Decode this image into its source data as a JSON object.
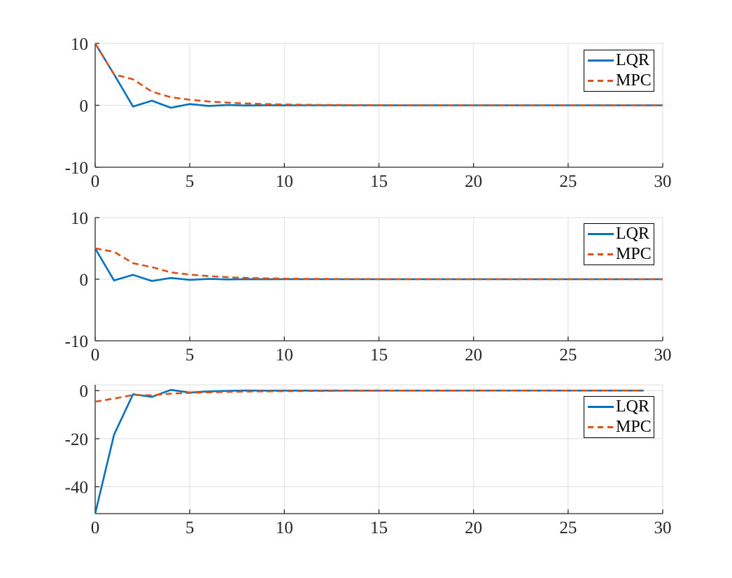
{
  "figure": {
    "background": "#ffffff"
  },
  "colors": {
    "lqr_blue": "#0072BD",
    "mpc_orange": "#D95319",
    "grid_gray": "#DEDEDE",
    "axis_dark": "#262626",
    "legend_border": "#000000"
  },
  "legend": {
    "items": [
      {
        "label": "LQR",
        "style": "solid",
        "color": "#0072BD"
      },
      {
        "label": "MPC",
        "style": "dashed",
        "color": "#D95319"
      }
    ]
  },
  "chart_data": [
    {
      "type": "line",
      "title": "",
      "xlabel": "",
      "ylabel": "",
      "xlim": [
        0,
        30
      ],
      "ylim": [
        -10,
        10
      ],
      "xticks": [
        0,
        5,
        10,
        15,
        20,
        25,
        30
      ],
      "yticks": [
        10,
        0,
        -10
      ],
      "grid": true,
      "legend_position": "northeast",
      "x_start": 0,
      "x_step": 1,
      "series": [
        {
          "name": "LQR",
          "color": "#0072BD",
          "style": "solid",
          "y": [
            10,
            5,
            -0.2,
            0.75,
            -0.4,
            0.2,
            -0.1,
            0.05,
            -0.03,
            0.01,
            -0.01,
            0,
            0,
            0,
            0,
            0,
            0,
            0,
            0,
            0,
            0,
            0,
            0,
            0,
            0,
            0,
            0,
            0,
            0,
            0,
            0
          ]
        },
        {
          "name": "MPC",
          "color": "#D95319",
          "style": "dashed",
          "y": [
            10,
            5,
            4.2,
            2.2,
            1.3,
            0.9,
            0.62,
            0.43,
            0.29,
            0.2,
            0.13,
            0.09,
            0.06,
            0.04,
            0.03,
            0.02,
            0.01,
            0.01,
            0,
            0,
            0,
            0,
            0,
            0,
            0,
            0,
            0,
            0,
            0,
            0,
            0
          ]
        }
      ]
    },
    {
      "type": "line",
      "title": "",
      "xlabel": "",
      "ylabel": "",
      "xlim": [
        0,
        30
      ],
      "ylim": [
        -10,
        10
      ],
      "xticks": [
        0,
        5,
        10,
        15,
        20,
        25,
        30
      ],
      "yticks": [
        10,
        0,
        -10
      ],
      "grid": true,
      "legend_position": "northeast",
      "x_start": 0,
      "x_step": 1,
      "series": [
        {
          "name": "LQR",
          "color": "#0072BD",
          "style": "solid",
          "y": [
            5,
            -0.2,
            0.7,
            -0.3,
            0.2,
            -0.1,
            0.05,
            -0.03,
            0.01,
            -0.01,
            0,
            0,
            0,
            0,
            0,
            0,
            0,
            0,
            0,
            0,
            0,
            0,
            0,
            0,
            0,
            0,
            0,
            0,
            0,
            0,
            0
          ]
        },
        {
          "name": "MPC",
          "color": "#D95319",
          "style": "dashed",
          "y": [
            5,
            4.45,
            2.6,
            1.95,
            1.1,
            0.75,
            0.5,
            0.33,
            0.21,
            0.14,
            0.09,
            0.06,
            0.04,
            0.03,
            0.02,
            0.01,
            0.01,
            0,
            0,
            0,
            0,
            0,
            0,
            0,
            0,
            0,
            0,
            0,
            0,
            0,
            0
          ]
        }
      ]
    },
    {
      "type": "line",
      "title": "",
      "xlabel": "",
      "ylabel": "",
      "xlim": [
        0,
        30
      ],
      "ylim": [
        -51.2,
        2.4
      ],
      "xticks": [
        0,
        5,
        10,
        15,
        20,
        25,
        30
      ],
      "yticks": [
        0,
        -20,
        -40
      ],
      "grid": true,
      "legend_position": "northeast",
      "x_start": 0,
      "x_step": 1,
      "series": [
        {
          "name": "LQR",
          "color": "#0072BD",
          "style": "solid",
          "y": [
            -51.2,
            -18.3,
            -1.5,
            -2.6,
            0.3,
            -0.8,
            -0.3,
            -0.1,
            0.03,
            -0.01,
            0,
            0,
            0,
            0,
            0,
            0,
            0,
            0,
            0,
            0,
            0,
            0,
            0,
            0,
            0,
            0,
            0,
            0,
            0,
            0
          ]
        },
        {
          "name": "MPC",
          "color": "#D95319",
          "style": "dashed",
          "y": [
            -4.6,
            -3.3,
            -1.8,
            -1.95,
            -1.25,
            -0.95,
            -0.72,
            -0.54,
            -0.4,
            -0.3,
            -0.22,
            -0.16,
            -0.12,
            -0.09,
            -0.06,
            -0.04,
            -0.03,
            -0.02,
            -0.015,
            -0.01,
            0,
            0,
            0,
            0,
            0,
            0,
            0,
            0,
            0,
            0
          ]
        }
      ]
    }
  ]
}
